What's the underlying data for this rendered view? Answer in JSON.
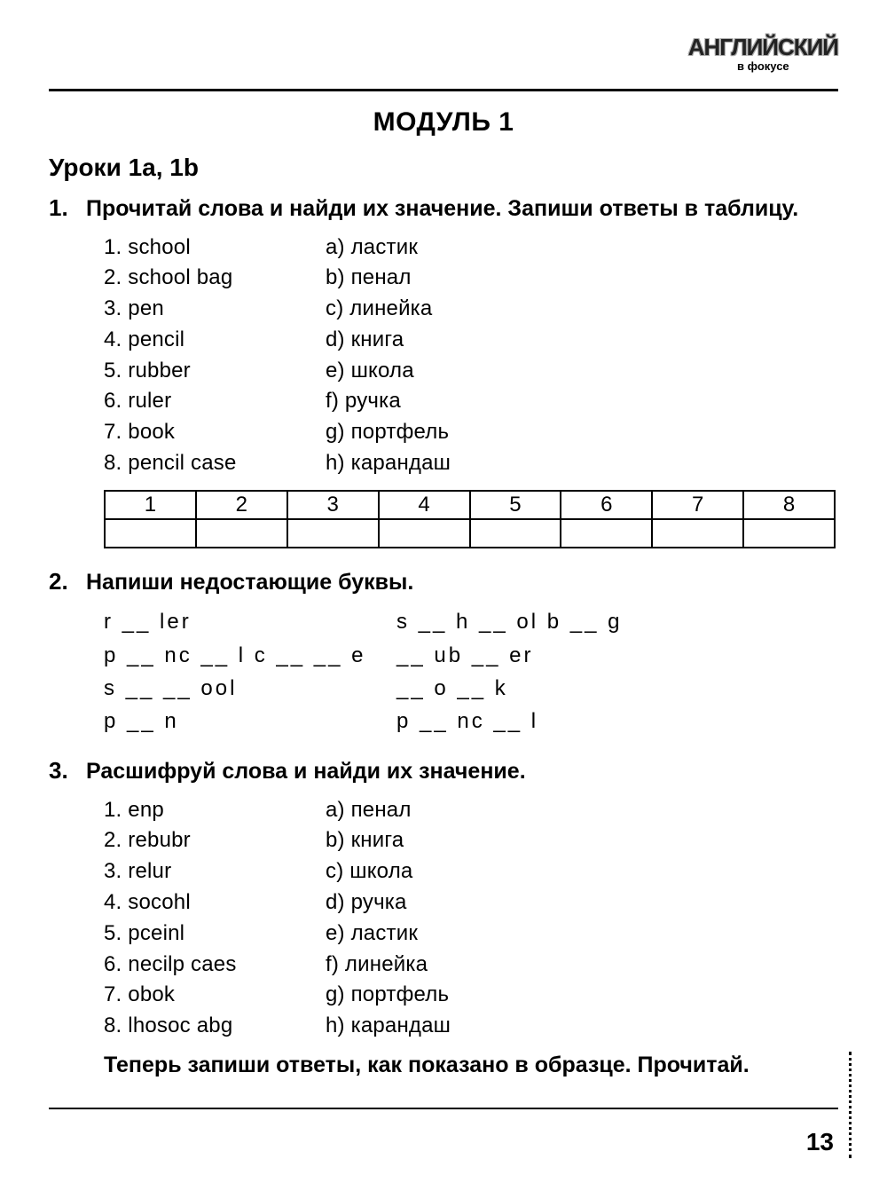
{
  "logo": {
    "line1": "АНГЛИЙСКИЙ",
    "line2": "в фокусе"
  },
  "module_title": "МОДУЛЬ 1",
  "lesson_title": "Уроки 1a, 1b",
  "page_number": "13",
  "ex1": {
    "num": "1.",
    "instr": "Прочитай слова и найди их значение. Запиши ответы в таблицу.",
    "left": [
      "1. school",
      "2. school bag",
      "3. pen",
      "4. pencil",
      "5. rubber",
      "6. ruler",
      "7. book",
      "8. pencil case"
    ],
    "right": [
      "a) ластик",
      "b) пенал",
      "c) линейка",
      "d) книга",
      "e) школа",
      "f) ручка",
      "g) портфель",
      "h) карандаш"
    ],
    "table_head": [
      "1",
      "2",
      "3",
      "4",
      "5",
      "6",
      "7",
      "8"
    ]
  },
  "ex2": {
    "num": "2.",
    "instr": "Напиши недостающие буквы.",
    "left": [
      "r __ ler",
      "p __ nc __ l c __ __ e",
      "s __ __ ool",
      "p __ n"
    ],
    "right": [
      "s __ h __ ol b __ g",
      "__ ub __ er",
      "__ o __ k",
      "p __ nc __ l"
    ]
  },
  "ex3": {
    "num": "3.",
    "instr": "Расшифруй слова и найди их значение.",
    "left": [
      "1. enp",
      "2. rebubr",
      "3. relur",
      "4. socohl",
      "5. pceinl",
      "6. necilp caes",
      "7. obok",
      "8. lhosoc abg"
    ],
    "right": [
      "a) пенал",
      "b) книга",
      "c) школа",
      "d) ручка",
      "e) ластик",
      "f) линейка",
      "g) портфель",
      "h) карандаш"
    ],
    "footer": "Теперь запиши ответы, как показано в образце. Прочитай."
  }
}
